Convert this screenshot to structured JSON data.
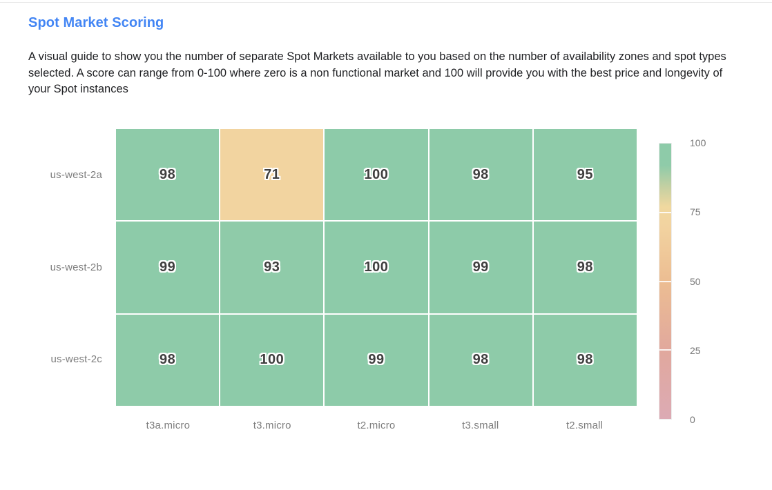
{
  "page": {
    "title": "Spot Market Scoring",
    "description": "A visual guide to show you the number of separate Spot Markets available to you based on the number of availability zones and spot types selected. A score can range from 0-100 where zero is a non functional market and 100 will provide you with the best price and longevity of your Spot instances"
  },
  "colors": {
    "title": "#4285f4",
    "body_text": "#202124",
    "axis_label": "#7d7d7d",
    "cell_value": "#3f3f3f",
    "grid_gap": "#ffffff"
  },
  "chart_data": {
    "type": "heatmap",
    "title": "Spot Market Scoring",
    "x_categories": [
      "t3a.micro",
      "t3.micro",
      "t2.micro",
      "t3.small",
      "t2.small"
    ],
    "y_categories": [
      "us-west-2a",
      "us-west-2b",
      "us-west-2c"
    ],
    "values": [
      [
        98,
        71,
        100,
        98,
        95
      ],
      [
        99,
        93,
        100,
        99,
        98
      ],
      [
        98,
        100,
        99,
        98,
        98
      ]
    ],
    "value_range": [
      0,
      100
    ],
    "colorbar_ticks": [
      "100",
      "75",
      "50",
      "25",
      "0"
    ],
    "legend_position": "right",
    "grid": true,
    "colorscale": [
      {
        "value": 0,
        "color": "#dcaab4"
      },
      {
        "value": 25,
        "color": "#e1a89d"
      },
      {
        "value": 50,
        "color": "#ecbd92"
      },
      {
        "value": 70,
        "color": "#f2d3a0"
      },
      {
        "value": 77,
        "color": "#f0d89f"
      },
      {
        "value": 84,
        "color": "#c6d0a2"
      },
      {
        "value": 92,
        "color": "#8fcba9"
      },
      {
        "value": 100,
        "color": "#8dcba9"
      }
    ]
  }
}
